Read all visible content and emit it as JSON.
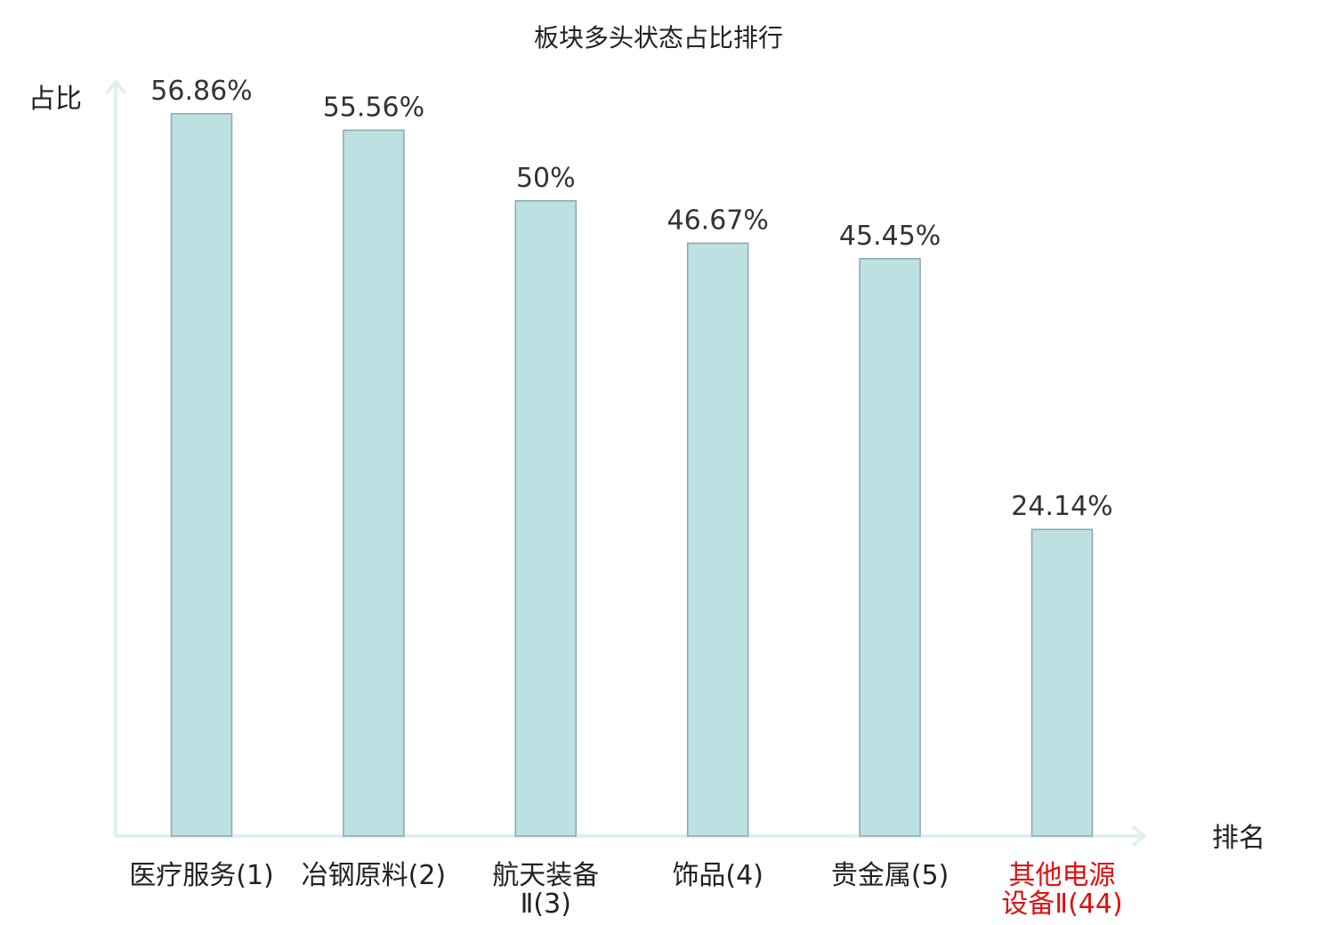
{
  "chart_data": {
    "type": "bar",
    "title": "板块多头状态占比排行",
    "ylabel": "占比",
    "xlabel": "排名",
    "ylim": [
      0,
      60
    ],
    "grid": false,
    "categories": [
      {
        "lines": [
          "医疗服务",
          "(1)"
        ],
        "inline": true,
        "highlight": false
      },
      {
        "lines": [
          "冶钢原料",
          "(2)"
        ],
        "inline": true,
        "highlight": false
      },
      {
        "lines": [
          "航天装备",
          "Ⅱ(3)"
        ],
        "inline": false,
        "highlight": false
      },
      {
        "lines": [
          "饰品",
          "(4)"
        ],
        "inline": true,
        "highlight": false
      },
      {
        "lines": [
          "贵金属",
          "(5)"
        ],
        "inline": true,
        "highlight": false
      },
      {
        "lines": [
          "其他电源",
          "设备Ⅱ(44)"
        ],
        "inline": false,
        "highlight": true
      }
    ],
    "values": [
      56.86,
      55.56,
      50,
      46.67,
      45.45,
      24.14
    ],
    "value_labels": [
      "56.86%",
      "55.56%",
      "50%",
      "46.67%",
      "45.45%",
      "24.14%"
    ]
  },
  "colors": {
    "bar_fill": "#bde0e3",
    "bar_stroke": "#8aa8ad",
    "axis": "#dff1ee",
    "highlight": "#e01010",
    "text": "#222222"
  }
}
